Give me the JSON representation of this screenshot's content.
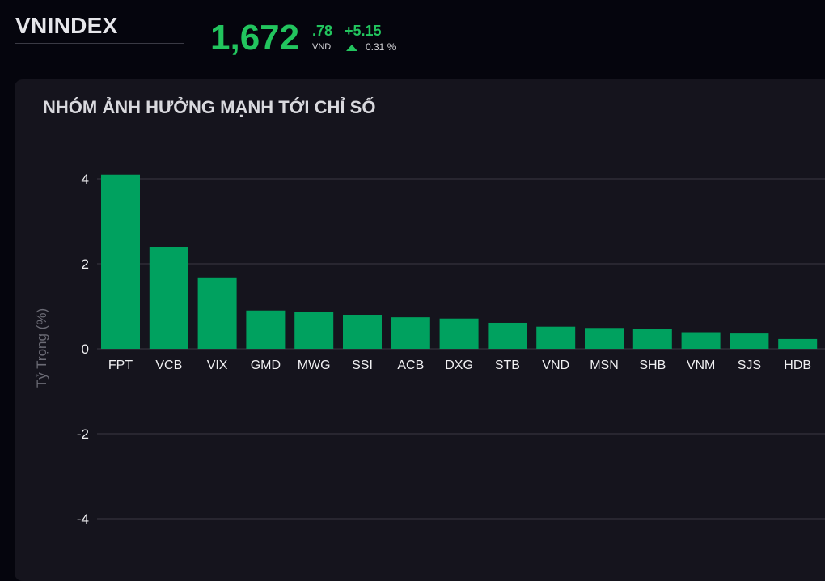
{
  "header": {
    "index_name": "VNINDEX",
    "price_main": "1,672",
    "price_decimal": ".78",
    "price_unit": "VND",
    "change": "+5.15",
    "change_pct": "0.31 %",
    "direction": "up",
    "up_color": "#22c55e"
  },
  "panel": {
    "title": "NHÓM ẢNH HƯỞNG MẠNH TỚI CHỈ SỐ"
  },
  "chart_data": {
    "type": "bar",
    "title": "NHÓM ẢNH HƯỞNG MẠNH TỚI CHỈ SỐ",
    "xlabel": "",
    "ylabel": "Tỷ Trọng (%)",
    "categories": [
      "FPT",
      "VCB",
      "VIX",
      "GMD",
      "MWG",
      "SSI",
      "ACB",
      "DXG",
      "STB",
      "VND",
      "MSN",
      "SHB",
      "VNM",
      "SJS",
      "HDB"
    ],
    "values": [
      4.1,
      2.4,
      1.68,
      0.9,
      0.87,
      0.8,
      0.74,
      0.71,
      0.61,
      0.52,
      0.49,
      0.46,
      0.39,
      0.36,
      0.23
    ],
    "ylim": [
      -4.5,
      4.5
    ],
    "yticks": [
      "4",
      "2",
      "0",
      "-2",
      "-4"
    ],
    "ytick_values": [
      4,
      2,
      0,
      -2,
      -4
    ],
    "grid": true,
    "bar_color": "#00a15f",
    "legend": "none"
  }
}
